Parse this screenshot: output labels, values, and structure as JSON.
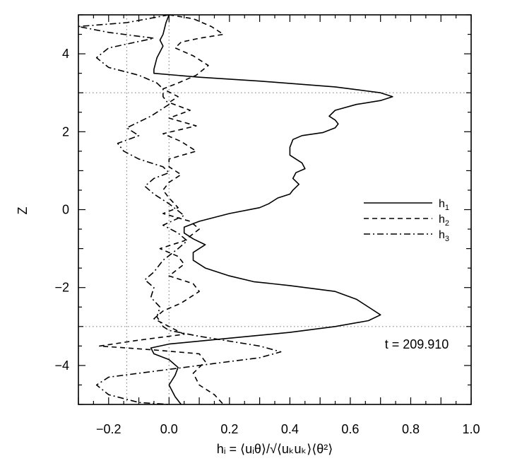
{
  "chart_data": {
    "type": "line",
    "xlabel": "hᵢ = ⟨uᵢθ⟩/√⟨uₖuₖ⟩⟨θ²⟩",
    "ylabel": "Z",
    "xlim": [
      -0.3,
      1.0
    ],
    "ylim": [
      -5,
      5
    ],
    "xticks": [
      -0.2,
      0.0,
      0.2,
      0.4,
      0.6,
      0.8,
      1.0
    ],
    "xtick_labels": [
      "−0.2",
      "0.0",
      "0.2",
      "0.4",
      "0.6",
      "0.8",
      "1.0"
    ],
    "yticks": [
      -4,
      -2,
      0,
      2,
      4
    ],
    "ytick_labels": [
      "−4",
      "−2",
      "0",
      "2",
      "4"
    ],
    "annotation": "t = 209.910",
    "grid": false,
    "reference_lines": {
      "vertical_x": [
        -0.14,
        0.0
      ],
      "horizontal_z": [
        3.0,
        -3.0
      ],
      "style": "dotted"
    },
    "legend": {
      "position": "right",
      "entries": [
        "h",
        "h",
        "h"
      ],
      "subscripts": [
        "1",
        "2",
        "3"
      ]
    },
    "series": [
      {
        "name": "h1",
        "style": "solid",
        "points": [
          [
            0.0,
            5.0
          ],
          [
            -0.01,
            4.8
          ],
          [
            -0.02,
            4.5
          ],
          [
            -0.03,
            4.35
          ],
          [
            -0.02,
            4.2
          ],
          [
            -0.04,
            3.9
          ],
          [
            -0.05,
            3.6
          ],
          [
            -0.05,
            3.5
          ],
          [
            0.1,
            3.4
          ],
          [
            0.3,
            3.3
          ],
          [
            0.55,
            3.15
          ],
          [
            0.7,
            3.0
          ],
          [
            0.74,
            2.9
          ],
          [
            0.7,
            2.8
          ],
          [
            0.62,
            2.7
          ],
          [
            0.55,
            2.55
          ],
          [
            0.53,
            2.4
          ],
          [
            0.55,
            2.3
          ],
          [
            0.56,
            2.2
          ],
          [
            0.55,
            2.1
          ],
          [
            0.51,
            1.98
          ],
          [
            0.44,
            1.9
          ],
          [
            0.41,
            1.8
          ],
          [
            0.4,
            1.6
          ],
          [
            0.4,
            1.4
          ],
          [
            0.42,
            1.3
          ],
          [
            0.44,
            1.2
          ],
          [
            0.45,
            1.05
          ],
          [
            0.42,
            0.95
          ],
          [
            0.41,
            0.8
          ],
          [
            0.43,
            0.65
          ],
          [
            0.41,
            0.5
          ],
          [
            0.4,
            0.4
          ],
          [
            0.36,
            0.3
          ],
          [
            0.33,
            0.15
          ],
          [
            0.3,
            0.05
          ],
          [
            0.2,
            -0.1
          ],
          [
            0.1,
            -0.3
          ],
          [
            0.05,
            -0.45
          ],
          [
            0.05,
            -0.6
          ],
          [
            0.08,
            -0.75
          ],
          [
            0.12,
            -0.9
          ],
          [
            0.08,
            -1.1
          ],
          [
            0.08,
            -1.3
          ],
          [
            0.12,
            -1.5
          ],
          [
            0.2,
            -1.7
          ],
          [
            0.28,
            -1.85
          ],
          [
            0.4,
            -1.95
          ],
          [
            0.55,
            -2.1
          ],
          [
            0.62,
            -2.3
          ],
          [
            0.67,
            -2.55
          ],
          [
            0.7,
            -2.7
          ],
          [
            0.66,
            -2.85
          ],
          [
            0.55,
            -3.0
          ],
          [
            0.4,
            -3.15
          ],
          [
            0.2,
            -3.3
          ],
          [
            0.0,
            -3.45
          ],
          [
            -0.06,
            -3.55
          ],
          [
            -0.05,
            -3.7
          ],
          [
            0.0,
            -3.85
          ],
          [
            0.03,
            -4.05
          ],
          [
            0.02,
            -4.25
          ],
          [
            0.0,
            -4.5
          ],
          [
            0.02,
            -4.8
          ],
          [
            0.04,
            -5.0
          ]
        ]
      },
      {
        "name": "h2",
        "style": "dashed",
        "points": [
          [
            0.0,
            5.0
          ],
          [
            0.08,
            4.9
          ],
          [
            0.14,
            4.7
          ],
          [
            0.18,
            4.5
          ],
          [
            0.1,
            4.4
          ],
          [
            0.04,
            4.3
          ],
          [
            0.02,
            4.15
          ],
          [
            0.08,
            3.95
          ],
          [
            0.13,
            3.7
          ],
          [
            0.09,
            3.45
          ],
          [
            0.03,
            3.25
          ],
          [
            -0.02,
            3.1
          ],
          [
            0.03,
            2.9
          ],
          [
            0.0,
            2.75
          ],
          [
            0.07,
            2.55
          ],
          [
            0.0,
            2.35
          ],
          [
            0.09,
            2.15
          ],
          [
            -0.02,
            1.95
          ],
          [
            0.04,
            1.75
          ],
          [
            0.09,
            1.5
          ],
          [
            0.0,
            1.3
          ],
          [
            0.0,
            1.1
          ],
          [
            0.04,
            0.9
          ],
          [
            0.0,
            0.7
          ],
          [
            -0.02,
            0.5
          ],
          [
            0.0,
            0.3
          ],
          [
            0.03,
            0.05
          ],
          [
            -0.02,
            -0.1
          ],
          [
            0.07,
            -0.3
          ],
          [
            0.1,
            -0.5
          ],
          [
            0.05,
            -0.8
          ],
          [
            -0.03,
            -1.0
          ],
          [
            0.03,
            -1.2
          ],
          [
            0.05,
            -1.4
          ],
          [
            0.0,
            -1.7
          ],
          [
            0.08,
            -1.9
          ],
          [
            0.1,
            -2.1
          ],
          [
            0.04,
            -2.4
          ],
          [
            -0.02,
            -2.6
          ],
          [
            -0.05,
            -2.8
          ],
          [
            0.0,
            -3.0
          ],
          [
            0.05,
            -3.2
          ],
          [
            -0.1,
            -3.35
          ],
          [
            -0.23,
            -3.5
          ],
          [
            -0.05,
            -3.6
          ],
          [
            0.1,
            -3.7
          ],
          [
            0.12,
            -3.9
          ],
          [
            0.08,
            -4.2
          ],
          [
            0.1,
            -4.5
          ],
          [
            0.15,
            -4.75
          ],
          [
            0.18,
            -5.0
          ]
        ]
      },
      {
        "name": "h3",
        "style": "dashdot",
        "points": [
          [
            0.0,
            5.0
          ],
          [
            -0.14,
            4.8
          ],
          [
            -0.3,
            4.7
          ],
          [
            -0.2,
            4.55
          ],
          [
            -0.05,
            4.4
          ],
          [
            -0.2,
            4.15
          ],
          [
            -0.24,
            3.9
          ],
          [
            -0.2,
            3.65
          ],
          [
            -0.1,
            3.45
          ],
          [
            -0.04,
            3.25
          ],
          [
            -0.02,
            3.1
          ],
          [
            -0.02,
            2.9
          ],
          [
            0.0,
            2.7
          ],
          [
            -0.06,
            2.4
          ],
          [
            -0.14,
            2.1
          ],
          [
            -0.1,
            1.9
          ],
          [
            -0.17,
            1.7
          ],
          [
            -0.15,
            1.5
          ],
          [
            -0.1,
            1.3
          ],
          [
            -0.02,
            1.1
          ],
          [
            0.0,
            0.95
          ],
          [
            -0.05,
            0.8
          ],
          [
            -0.08,
            0.6
          ],
          [
            -0.05,
            0.4
          ],
          [
            0.0,
            0.15
          ],
          [
            0.05,
            -0.15
          ],
          [
            -0.02,
            -0.4
          ],
          [
            0.03,
            -0.6
          ],
          [
            0.06,
            -0.8
          ],
          [
            0.03,
            -1.0
          ],
          [
            -0.02,
            -1.3
          ],
          [
            -0.05,
            -1.6
          ],
          [
            -0.08,
            -1.8
          ],
          [
            -0.05,
            -2.0
          ],
          [
            -0.06,
            -2.25
          ],
          [
            -0.03,
            -2.5
          ],
          [
            -0.04,
            -2.75
          ],
          [
            -0.02,
            -3.0
          ],
          [
            0.0,
            -3.1
          ],
          [
            0.1,
            -3.25
          ],
          [
            0.3,
            -3.5
          ],
          [
            0.37,
            -3.65
          ],
          [
            0.3,
            -3.8
          ],
          [
            0.15,
            -3.95
          ],
          [
            0.0,
            -4.1
          ],
          [
            -0.2,
            -4.3
          ],
          [
            -0.24,
            -4.5
          ],
          [
            -0.2,
            -4.75
          ],
          [
            -0.1,
            -4.95
          ],
          [
            0.0,
            -5.0
          ]
        ]
      }
    ]
  }
}
